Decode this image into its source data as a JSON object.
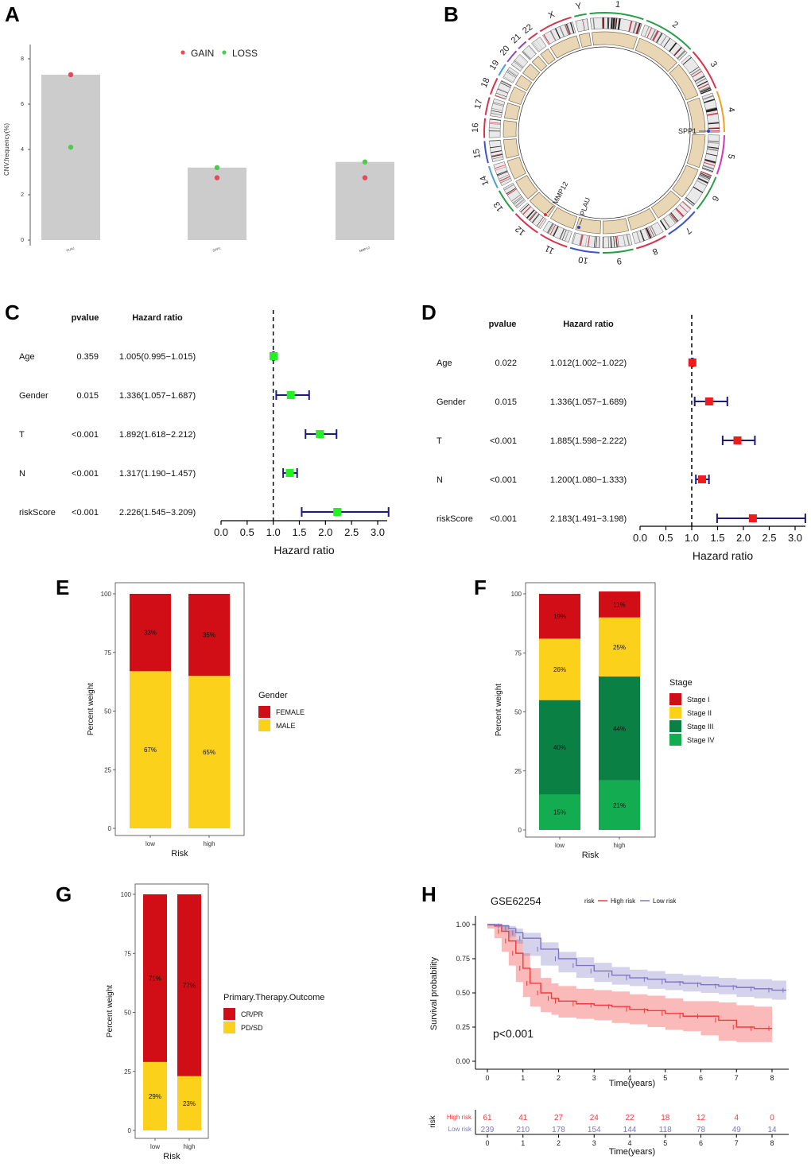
{
  "panels": {
    "A": "A",
    "B": "B",
    "C": "C",
    "D": "D",
    "E": "E",
    "F": "F",
    "G": "G",
    "H": "H"
  },
  "colors": {
    "gain": "#e34a5a",
    "loss": "#4fc94f",
    "red": "#d10d16",
    "yellow": "#fcd11c",
    "dkgreen": "#0b8045",
    "green": "#14ac50",
    "navy": "#1d1a7c",
    "fgreen": "#23f123",
    "fred": "#f01b1b",
    "hred": "#f23a3a",
    "hblue": "#7c76c2"
  },
  "chart_data": [
    {
      "id": "A",
      "type": "bar",
      "title": "",
      "ylabel": "CNV.frequency(%)",
      "categories": [
        "PLAU",
        "SPP1",
        "MMP12"
      ],
      "values": [
        7.3,
        3.2,
        3.45
      ],
      "points": {
        "GAIN": [
          7.3,
          2.75,
          2.75
        ],
        "LOSS": [
          4.1,
          3.2,
          3.45
        ]
      },
      "legend": [
        "GAIN",
        "LOSS"
      ],
      "yticks": [
        "0",
        "2",
        "4",
        "6",
        "8"
      ],
      "ylim": [
        0,
        8
      ]
    },
    {
      "id": "B",
      "type": "other",
      "description_labels": true,
      "chromosomes": [
        "1",
        "2",
        "3",
        "4",
        "5",
        "6",
        "7",
        "8",
        "9",
        "10",
        "11",
        "12",
        "13",
        "14",
        "15",
        "16",
        "17",
        "18",
        "19",
        "20",
        "21",
        "22",
        "X",
        "Y"
      ],
      "genes": [
        "SPP1",
        "MMP12",
        "PLAU"
      ]
    },
    {
      "id": "C",
      "type": "scatter",
      "xlabel": "Hazard ratio",
      "col_pvalue": "pvalue",
      "col_hr": "Hazard ratio",
      "rows": [
        {
          "name": "Age",
          "p": "0.359",
          "hr_text": "1.005(0.995−1.015)",
          "hr": 1.005,
          "lo": 0.995,
          "hi": 1.015
        },
        {
          "name": "Gender",
          "p": "0.015",
          "hr_text": "1.336(1.057−1.687)",
          "hr": 1.336,
          "lo": 1.057,
          "hi": 1.687
        },
        {
          "name": "T",
          "p": "<0.001",
          "hr_text": "1.892(1.618−2.212)",
          "hr": 1.892,
          "lo": 1.618,
          "hi": 2.212
        },
        {
          "name": "N",
          "p": "<0.001",
          "hr_text": "1.317(1.190−1.457)",
          "hr": 1.317,
          "lo": 1.19,
          "hi": 1.457
        },
        {
          "name": "riskScore",
          "p": "<0.001",
          "hr_text": "2.226(1.545−3.209)",
          "hr": 2.226,
          "lo": 1.545,
          "hi": 3.209
        }
      ],
      "xticks": [
        "0.0",
        "0.5",
        "1.0",
        "1.5",
        "2.0",
        "2.5",
        "3.0"
      ],
      "xlim": [
        0,
        3.2
      ]
    },
    {
      "id": "D",
      "type": "scatter",
      "xlabel": "Hazard ratio",
      "col_pvalue": "pvalue",
      "col_hr": "Hazard ratio",
      "rows": [
        {
          "name": "Age",
          "p": "0.022",
          "hr_text": "1.012(1.002−1.022)",
          "hr": 1.012,
          "lo": 1.002,
          "hi": 1.022
        },
        {
          "name": "Gender",
          "p": "0.015",
          "hr_text": "1.336(1.057−1.689)",
          "hr": 1.336,
          "lo": 1.057,
          "hi": 1.689
        },
        {
          "name": "T",
          "p": "<0.001",
          "hr_text": "1.885(1.598−2.222)",
          "hr": 1.885,
          "lo": 1.598,
          "hi": 2.222
        },
        {
          "name": "N",
          "p": "<0.001",
          "hr_text": "1.200(1.080−1.333)",
          "hr": 1.2,
          "lo": 1.08,
          "hi": 1.333
        },
        {
          "name": "riskScore",
          "p": "<0.001",
          "hr_text": "2.183(1.491−3.198)",
          "hr": 2.183,
          "lo": 1.491,
          "hi": 3.198
        }
      ],
      "xticks": [
        "0.0",
        "0.5",
        "1.0",
        "1.5",
        "2.0",
        "2.5",
        "3.0"
      ],
      "xlim": [
        0,
        3.2
      ]
    },
    {
      "id": "E",
      "type": "bar",
      "stacked": true,
      "xlabel": "Risk",
      "ylabel": "Percent weight",
      "categories": [
        "low",
        "high"
      ],
      "series": [
        {
          "name": "MALE",
          "values": [
            67,
            65
          ],
          "labels": [
            "67%",
            "65%"
          ]
        },
        {
          "name": "FEMALE",
          "values": [
            33,
            35
          ],
          "labels": [
            "33%",
            "35%"
          ]
        }
      ],
      "legend_title": "Gender",
      "legend": [
        "FEMALE",
        "MALE"
      ],
      "yticks": [
        "0",
        "25",
        "50",
        "75",
        "100"
      ],
      "ylim": [
        0,
        100
      ]
    },
    {
      "id": "F",
      "type": "bar",
      "stacked": true,
      "xlabel": "Risk",
      "ylabel": "Percent weight",
      "categories": [
        "low",
        "high"
      ],
      "series": [
        {
          "name": "Stage IV",
          "values": [
            15,
            21
          ],
          "labels": [
            "15%",
            "21%"
          ]
        },
        {
          "name": "Stage III",
          "values": [
            40,
            44
          ],
          "labels": [
            "40%",
            "44%"
          ]
        },
        {
          "name": "Stage II",
          "values": [
            26,
            25
          ],
          "labels": [
            "26%",
            "25%"
          ]
        },
        {
          "name": "Stage I",
          "values": [
            19,
            11
          ],
          "labels": [
            "19%",
            "11%"
          ]
        }
      ],
      "legend_title": "Stage",
      "legend": [
        "Stage I",
        "Stage II",
        "Stage III",
        "Stage IV"
      ],
      "yticks": [
        "0",
        "25",
        "50",
        "75",
        "100"
      ],
      "ylim": [
        0,
        100
      ]
    },
    {
      "id": "G",
      "type": "bar",
      "stacked": true,
      "xlabel": "Risk",
      "ylabel": "Percent weight",
      "categories": [
        "low",
        "high"
      ],
      "series": [
        {
          "name": "PD/SD",
          "values": [
            29,
            23
          ],
          "labels": [
            "29%",
            "23%"
          ]
        },
        {
          "name": "CR/PR",
          "values": [
            71,
            77
          ],
          "labels": [
            "71%",
            "77%"
          ]
        }
      ],
      "legend_title": "Primary.Therapy.Outcome",
      "legend": [
        "CR/PR",
        "PD/SD"
      ],
      "yticks": [
        "0",
        "25",
        "50",
        "75",
        "100"
      ],
      "ylim": [
        0,
        100
      ]
    },
    {
      "id": "H",
      "type": "line",
      "title": "GSE62254",
      "xlabel": "Time(years)",
      "ylabel": "Survival probability",
      "legend_title": "risk",
      "legend": [
        "High risk",
        "Low risk"
      ],
      "pvalue": "p<0.001",
      "series": [
        {
          "name": "High risk",
          "x": [
            0,
            0.2,
            0.4,
            0.6,
            0.8,
            1,
            1.2,
            1.5,
            1.8,
            2,
            2.5,
            3,
            3.5,
            4,
            4.5,
            5,
            5.5,
            6,
            6.5,
            7,
            7.5,
            8
          ],
          "y": [
            1,
            0.99,
            0.95,
            0.88,
            0.79,
            0.68,
            0.57,
            0.5,
            0.46,
            0.44,
            0.42,
            0.41,
            0.4,
            0.38,
            0.37,
            0.35,
            0.33,
            0.33,
            0.3,
            0.25,
            0.24,
            0.24
          ],
          "lower": [
            1,
            0.97,
            0.9,
            0.8,
            0.7,
            0.58,
            0.47,
            0.4,
            0.36,
            0.34,
            0.32,
            0.31,
            0.3,
            0.28,
            0.27,
            0.25,
            0.23,
            0.22,
            0.19,
            0.15,
            0.14,
            0.14
          ],
          "upper": [
            1,
            1,
            0.99,
            0.96,
            0.89,
            0.79,
            0.68,
            0.61,
            0.57,
            0.55,
            0.53,
            0.52,
            0.51,
            0.49,
            0.48,
            0.46,
            0.44,
            0.44,
            0.43,
            0.41,
            0.4,
            0.4
          ]
        },
        {
          "name": "Low risk",
          "x": [
            0,
            0.2,
            0.4,
            0.6,
            0.8,
            1,
            1.5,
            2,
            2.5,
            3,
            3.5,
            4,
            4.5,
            5,
            5.5,
            6,
            6.5,
            7,
            7.5,
            8,
            8.4
          ],
          "y": [
            1,
            1,
            0.99,
            0.97,
            0.94,
            0.9,
            0.82,
            0.75,
            0.7,
            0.66,
            0.63,
            0.61,
            0.6,
            0.58,
            0.57,
            0.56,
            0.55,
            0.54,
            0.53,
            0.52,
            0.52
          ],
          "lower": [
            1,
            0.99,
            0.98,
            0.95,
            0.91,
            0.86,
            0.77,
            0.7,
            0.65,
            0.61,
            0.58,
            0.56,
            0.55,
            0.53,
            0.52,
            0.51,
            0.5,
            0.49,
            0.47,
            0.46,
            0.45
          ],
          "upper": [
            1,
            1,
            1,
            0.99,
            0.97,
            0.94,
            0.87,
            0.8,
            0.76,
            0.72,
            0.69,
            0.67,
            0.66,
            0.64,
            0.63,
            0.62,
            0.61,
            0.6,
            0.6,
            0.59,
            0.59
          ]
        }
      ],
      "xticks": [
        "0",
        "1",
        "2",
        "3",
        "4",
        "5",
        "6",
        "7",
        "8"
      ],
      "yticks": [
        "0.00",
        "0.25",
        "0.50",
        "0.75",
        "1.00"
      ],
      "xlim": [
        -0.3,
        8.4
      ],
      "ylim": [
        -0.05,
        1.05
      ],
      "table": {
        "ylabel": "risk",
        "times": [
          0,
          1,
          2,
          3,
          4,
          5,
          6,
          7,
          8
        ],
        "rows": [
          {
            "name": "High risk",
            "counts": [
              "61",
              "41",
              "27",
              "24",
              "22",
              "18",
              "12",
              "4",
              "0"
            ]
          },
          {
            "name": "Low risk",
            "counts": [
              "239",
              "210",
              "178",
              "154",
              "144",
              "118",
              "78",
              "49",
              "14"
            ]
          }
        ]
      }
    }
  ]
}
